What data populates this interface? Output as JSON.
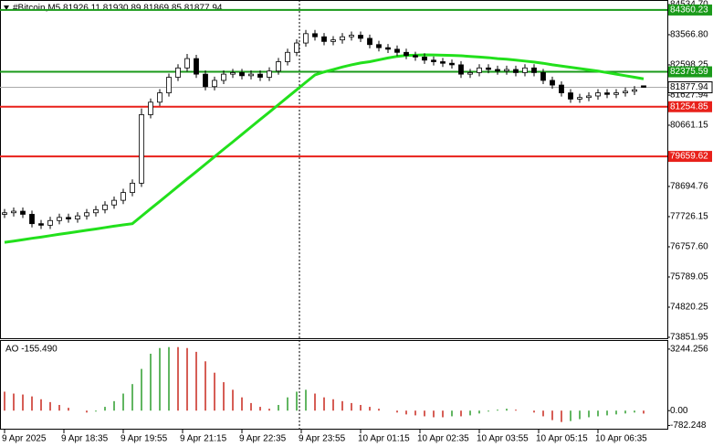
{
  "chart_data": [
    {
      "type": "candlestick",
      "title": "#Bitcoin,M5  81926.11 81930.89 81869.85 81877.94",
      "x_labels": [
        "9 Apr 2025",
        "9 Apr 18:35",
        "9 Apr 19:55",
        "9 Apr 21:15",
        "9 Apr 22:35",
        "9 Apr 23:55",
        "10 Apr 01:15",
        "10 Apr 02:35",
        "10 Apr 03:55",
        "10 Apr 05:15",
        "10 Apr 06:35"
      ],
      "open": [
        77800,
        77850,
        77900,
        77800,
        77500,
        77450,
        77600,
        77700,
        77650,
        77750,
        77850,
        77950,
        78100,
        78250,
        78500,
        78800,
        81000,
        81400,
        81700,
        82200,
        82500,
        82800,
        82300,
        81900,
        82100,
        82300,
        82350,
        82250,
        82300,
        82200,
        82400,
        82700,
        83000,
        83300,
        83600,
        83500,
        83350,
        83400,
        83500,
        83550,
        83450,
        83250,
        83150,
        83100,
        83000,
        82900,
        82850,
        82750,
        82700,
        82650,
        82600,
        82300,
        82350,
        82500,
        82450,
        82400,
        82450,
        82350,
        82500,
        82350,
        82100,
        81950,
        81700,
        81500,
        81550,
        81600,
        81700,
        81650,
        81700,
        81750,
        81926.11
      ],
      "high": [
        77970,
        78020,
        78020,
        77920,
        77620,
        77720,
        77820,
        77820,
        77870,
        77970,
        78070,
        78220,
        78370,
        78620,
        78920,
        81200,
        81520,
        81820,
        82320,
        82620,
        82950,
        82920,
        82420,
        82220,
        82420,
        82470,
        82470,
        82420,
        82420,
        82520,
        82820,
        83120,
        83420,
        83720,
        83720,
        83620,
        83520,
        83620,
        83670,
        83670,
        83570,
        83370,
        83270,
        83220,
        83120,
        83020,
        82970,
        82870,
        82820,
        82770,
        82720,
        82470,
        82620,
        82620,
        82570,
        82570,
        82570,
        82620,
        82620,
        82470,
        82220,
        82070,
        81820,
        81670,
        81720,
        81820,
        81820,
        81820,
        81870,
        81920,
        81930.89
      ],
      "low": [
        77680,
        77730,
        77680,
        77380,
        77330,
        77330,
        77480,
        77530,
        77530,
        77630,
        77730,
        77830,
        77980,
        78130,
        78380,
        78680,
        80880,
        81280,
        81580,
        82080,
        82380,
        82180,
        81780,
        81780,
        81980,
        82180,
        82130,
        82130,
        82080,
        82080,
        82280,
        82580,
        82880,
        83180,
        83380,
        83230,
        83230,
        83280,
        83380,
        83330,
        83130,
        83030,
        82980,
        82880,
        82780,
        82730,
        82630,
        82580,
        82530,
        82480,
        82180,
        82180,
        82230,
        82330,
        82280,
        82280,
        82230,
        82230,
        82230,
        81980,
        81830,
        81580,
        81380,
        81380,
        81430,
        81480,
        81530,
        81530,
        81580,
        81630,
        81869.85
      ],
      "close": [
        77850,
        77900,
        77800,
        77500,
        77450,
        77600,
        77700,
        77650,
        77750,
        77850,
        77950,
        78100,
        78250,
        78500,
        78800,
        81000,
        81400,
        81700,
        82200,
        82500,
        82800,
        82300,
        81900,
        82100,
        82300,
        82350,
        82250,
        82300,
        82200,
        82400,
        82700,
        83000,
        83300,
        83600,
        83500,
        83350,
        83400,
        83500,
        83550,
        83450,
        83250,
        83150,
        83100,
        83000,
        82900,
        82850,
        82750,
        82700,
        82650,
        82600,
        82300,
        82350,
        82500,
        82450,
        82400,
        82450,
        82350,
        82500,
        82350,
        82100,
        81950,
        81700,
        81500,
        81550,
        81600,
        81700,
        81650,
        81700,
        81750,
        81800,
        81877.94
      ],
      "overlays": [
        {
          "color": "#22e01c",
          "values": [
            76900,
            76940,
            76985,
            77030,
            77070,
            77115,
            77160,
            77200,
            77245,
            77290,
            77330,
            77375,
            77420,
            77460,
            77500,
            77740,
            77980,
            78215,
            78455,
            78695,
            78935,
            79170,
            79410,
            79650,
            79890,
            80125,
            80365,
            80605,
            80845,
            81080,
            81320,
            81560,
            81800,
            82040,
            82275,
            82370,
            82450,
            82530,
            82600,
            82660,
            82700,
            82760,
            82820,
            82870,
            82900,
            82910,
            82920,
            82915,
            82910,
            82900,
            82890,
            82870,
            82850,
            82830,
            82800,
            82780,
            82750,
            82720,
            82690,
            82650,
            82600,
            82560,
            82520,
            82480,
            82440,
            82400,
            82350,
            82300,
            82250,
            82200,
            82150
          ]
        }
      ],
      "levels": [
        {
          "value": 84360.23,
          "color": "#1a9a1a"
        },
        {
          "value": 82375.59,
          "color": "#1a9a1a"
        },
        {
          "value": 81254.85,
          "color": "#e8201a"
        },
        {
          "value": 79659.62,
          "color": "#e8201a"
        }
      ],
      "ylim": [
        73822,
        84681
      ],
      "yticks": [
        {
          "value": 84534.7,
          "label": "84534.70"
        },
        {
          "value": 83566.8,
          "label": "83566.80"
        },
        82598.25,
        81627.94,
        80661.15,
        78694.76,
        77726.15,
        {
          "value": 76757.6,
          "label": "76757.60"
        },
        75789.05,
        74820.25,
        73851.95
      ]
    },
    {
      "type": "histogram",
      "title": "AO -155.490",
      "up_color": "#2e9e2e",
      "down_color": "#c8281e",
      "values": [
        1000,
        900,
        850,
        750,
        600,
        450,
        300,
        150,
        0,
        -100,
        -50,
        200,
        500,
        900,
        1400,
        2200,
        3000,
        3300,
        3350,
        3350,
        3300,
        3100,
        2600,
        2000,
        1500,
        1100,
        700,
        400,
        200,
        100,
        300,
        700,
        1000,
        1100,
        900,
        700,
        600,
        500,
        400,
        300,
        200,
        100,
        0,
        -100,
        -200,
        -250,
        -300,
        -350,
        -350,
        -300,
        -300,
        -250,
        -150,
        -50,
        50,
        100,
        50,
        0,
        -100,
        -300,
        -500,
        -600,
        -550,
        -450,
        -350,
        -300,
        -250,
        -200,
        -150,
        -100,
        -155.49
      ],
      "ylim": [
        -1002,
        3673
      ],
      "yticks": [
        3244.256,
        {
          "value": 0,
          "label": "0.00"
        },
        -782.248
      ]
    }
  ]
}
